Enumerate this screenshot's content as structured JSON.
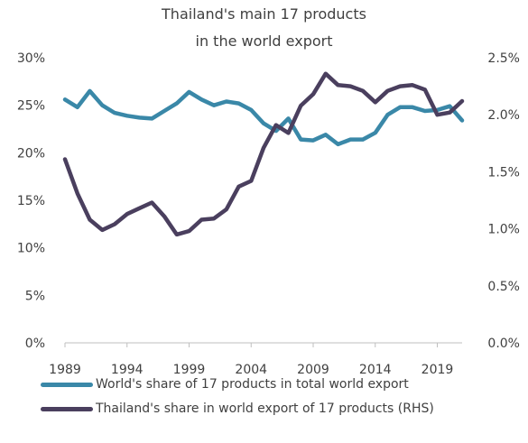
{
  "chart_data": {
    "type": "line",
    "title_lines": [
      "Thailand's main 17 products",
      "in the world export"
    ],
    "x": [
      1989,
      1990,
      1991,
      1992,
      1993,
      1994,
      1995,
      1996,
      1997,
      1998,
      1999,
      2000,
      2001,
      2002,
      2003,
      2004,
      2005,
      2006,
      2007,
      2008,
      2009,
      2010,
      2011,
      2012,
      2013,
      2014,
      2015,
      2016,
      2017,
      2018,
      2019,
      2020,
      2021
    ],
    "x_ticks": [
      "1989",
      "1994",
      "1999",
      "2004",
      "2009",
      "2014",
      "2019"
    ],
    "x_tick_values": [
      1989,
      1994,
      1999,
      2004,
      2009,
      2014,
      2019
    ],
    "y_left_ticks": [
      "0%",
      "5%",
      "10%",
      "15%",
      "20%",
      "25%",
      "30%"
    ],
    "y_left_range": [
      0,
      30
    ],
    "y_right_ticks": [
      "0.0%",
      "0.5%",
      "1.0%",
      "1.5%",
      "2.0%",
      "2.5%"
    ],
    "y_right_range": [
      0,
      2.5
    ],
    "series": [
      {
        "name": "World's share of 17 products in total world export",
        "axis": "left",
        "color": "#3a88a8",
        "values": [
          25.6,
          24.8,
          26.5,
          25.0,
          24.2,
          23.9,
          23.7,
          23.6,
          24.4,
          25.2,
          26.4,
          25.6,
          25.0,
          25.4,
          25.2,
          24.5,
          23.1,
          22.3,
          23.6,
          21.4,
          21.3,
          21.9,
          20.9,
          21.4,
          21.4,
          22.1,
          24.0,
          24.8,
          24.8,
          24.4,
          24.5,
          24.9,
          23.4
        ]
      },
      {
        "name": "Thailand's share in world export of 17 products (RHS)",
        "axis": "right",
        "color": "#4a3f5e",
        "values": [
          1.61,
          1.31,
          1.08,
          0.99,
          1.04,
          1.13,
          1.18,
          1.23,
          1.11,
          0.95,
          0.98,
          1.08,
          1.09,
          1.17,
          1.37,
          1.42,
          1.71,
          1.91,
          1.84,
          2.08,
          2.18,
          2.36,
          2.26,
          2.25,
          2.21,
          2.11,
          2.21,
          2.25,
          2.26,
          2.22,
          2.0,
          2.02,
          2.12
        ]
      }
    ]
  }
}
